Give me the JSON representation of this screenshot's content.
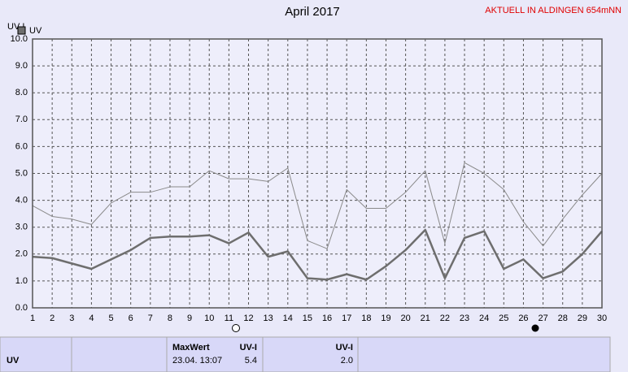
{
  "chart_data": {
    "type": "line",
    "title": "April 2017",
    "subtitle": "AKTUELL IN ALDINGEN 654mNN",
    "y_label": "UV-I",
    "x": [
      1,
      2,
      3,
      4,
      5,
      6,
      7,
      8,
      9,
      10,
      11,
      12,
      13,
      14,
      15,
      16,
      17,
      18,
      19,
      20,
      21,
      22,
      23,
      24,
      25,
      26,
      27,
      28,
      29,
      30
    ],
    "xlim": [
      1,
      30
    ],
    "xticks": [
      1,
      2,
      3,
      4,
      5,
      6,
      7,
      8,
      9,
      10,
      11,
      12,
      13,
      14,
      15,
      16,
      17,
      18,
      19,
      20,
      21,
      22,
      23,
      24,
      25,
      26,
      27,
      28,
      29,
      30
    ],
    "ylim": [
      0,
      10
    ],
    "yticks": [
      {
        "value": 0,
        "label": "0.0"
      },
      {
        "value": 1,
        "label": "1.0"
      },
      {
        "value": 2,
        "label": "2.0"
      },
      {
        "value": 3,
        "label": "3.0"
      },
      {
        "value": 4,
        "label": "4.0"
      },
      {
        "value": 5,
        "label": "5.0"
      },
      {
        "value": 6,
        "label": "6.0"
      },
      {
        "value": 7,
        "label": "7.0"
      },
      {
        "value": 8,
        "label": "8.0"
      },
      {
        "value": 9,
        "label": "9.0"
      },
      {
        "value": 10,
        "label": "10.0"
      }
    ],
    "grid": true,
    "series": [
      {
        "name": "UV",
        "color": "#6e6e6e",
        "values": [
          1.9,
          1.85,
          1.65,
          1.45,
          1.8,
          2.15,
          2.6,
          2.65,
          2.65,
          2.7,
          2.4,
          2.8,
          1.9,
          2.1,
          1.1,
          1.05,
          1.25,
          1.05,
          1.55,
          2.15,
          2.9,
          1.1,
          2.6,
          2.85,
          1.45,
          1.8,
          1.1,
          1.35,
          2.0,
          2.85
        ]
      },
      {
        "color": "#8a8a8a",
        "values": [
          3.8,
          3.4,
          3.3,
          3.1,
          3.9,
          4.3,
          4.3,
          4.5,
          4.5,
          5.1,
          4.8,
          4.8,
          4.7,
          5.2,
          2.5,
          2.2,
          4.4,
          3.7,
          3.7,
          4.3,
          5.1,
          2.4,
          5.4,
          5.0,
          4.4,
          3.2,
          2.3,
          3.3,
          4.2,
          5.0
        ]
      }
    ]
  },
  "table": {
    "label": "UV",
    "max_header": "MaxWert",
    "max_unit": "UV-I",
    "max_time": "23.04.  13:07",
    "max_value": "5.4",
    "mean_unit": "UV-I",
    "mean_value": "2.0"
  }
}
